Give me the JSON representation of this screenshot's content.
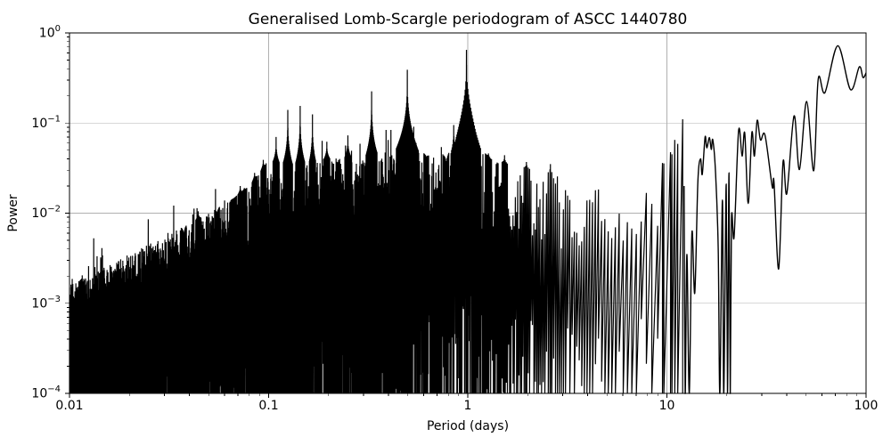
{
  "chart_data": {
    "type": "line",
    "title": "Generalised Lomb-Scargle periodogram of ASCC 1440780",
    "xlabel": "Period (days)",
    "ylabel": "Power",
    "xscale": "log",
    "yscale": "log",
    "xlim": [
      0.01,
      100
    ],
    "ylim": [
      0.0001,
      1
    ],
    "grid": true,
    "legend": false,
    "line_color": "#000000",
    "grid_color": "#b0b0b0",
    "x_tick_labels": [
      "0.01",
      "0.1",
      "1",
      "10",
      "100"
    ],
    "x_tick_values": [
      0.01,
      0.1,
      1,
      10,
      100
    ],
    "y_tick_base": "10",
    "y_tick_exponents": [
      "0",
      "−1",
      "−2",
      "−3",
      "−4"
    ],
    "y_tick_values": [
      1,
      0.1,
      0.01,
      0.001,
      0.0001
    ],
    "peaks": [
      [
        0.0375,
        0.005,
        0.004
      ],
      [
        0.0443,
        0.0105,
        0.004
      ],
      [
        0.055,
        0.009,
        0.004
      ],
      [
        0.0665,
        0.0145,
        0.004
      ],
      [
        0.072,
        0.02,
        0.004
      ],
      [
        0.0755,
        0.019,
        0.004
      ],
      [
        0.085,
        0.028,
        0.004
      ],
      [
        0.094,
        0.039,
        0.004
      ],
      [
        0.109,
        0.07,
        0.005
      ],
      [
        0.1248,
        0.14,
        0.005
      ],
      [
        0.144,
        0.155,
        0.005
      ],
      [
        0.166,
        0.125,
        0.005
      ],
      [
        0.196,
        0.062,
        0.005
      ],
      [
        0.25,
        0.073,
        0.005
      ],
      [
        0.329,
        0.225,
        0.006
      ],
      [
        0.455,
        0.04,
        0.004
      ],
      [
        0.497,
        0.39,
        0.012
      ],
      [
        0.55,
        0.06,
        0.004
      ],
      [
        0.62,
        0.04,
        0.004
      ],
      [
        0.78,
        0.031,
        0.004
      ],
      [
        0.85,
        0.095,
        0.004
      ],
      [
        0.985,
        0.65,
        0.015
      ],
      [
        1.057,
        0.09,
        0.004
      ],
      [
        1.27,
        0.046,
        0.005
      ],
      [
        1.53,
        0.044,
        0.005
      ],
      [
        1.97,
        0.037,
        0.005
      ],
      [
        2.6,
        0.035,
        0.005
      ],
      [
        9.5,
        0.036,
        0.006
      ],
      [
        10.6,
        0.045,
        0.006
      ],
      [
        10.95,
        0.065,
        0.006
      ],
      [
        12.0,
        0.11,
        0.008
      ]
    ],
    "envelope_upper": [
      [
        0.01,
        0.0016
      ],
      [
        0.016,
        0.0028
      ],
      [
        0.025,
        0.0045
      ],
      [
        0.037,
        0.007
      ],
      [
        0.05,
        0.01
      ],
      [
        0.065,
        0.014
      ],
      [
        0.08,
        0.02
      ],
      [
        0.1,
        0.038
      ],
      [
        0.13,
        0.035
      ],
      [
        0.2,
        0.04
      ],
      [
        0.25,
        0.042
      ],
      [
        0.33,
        0.045
      ],
      [
        0.5,
        0.055
      ],
      [
        0.7,
        0.04
      ],
      [
        0.85,
        0.05
      ],
      [
        0.95,
        0.075
      ],
      [
        1.0,
        0.09
      ],
      [
        1.1,
        0.06
      ],
      [
        1.3,
        0.04
      ],
      [
        1.6,
        0.035
      ],
      [
        2.5,
        0.028
      ],
      [
        4,
        0.02
      ],
      [
        6,
        0.018
      ],
      [
        8,
        0.022
      ],
      [
        9,
        0.028
      ],
      [
        10,
        0.04
      ],
      [
        10.5,
        0.05
      ],
      [
        11.5,
        0.06
      ],
      [
        12.0,
        0.07
      ],
      [
        12.2,
        0.04
      ]
    ],
    "envelope_base": [
      [
        0.01,
        0.00085
      ],
      [
        0.02,
        0.0013
      ],
      [
        0.04,
        0.0021
      ],
      [
        0.07,
        0.0032
      ],
      [
        0.1,
        0.0042
      ],
      [
        0.2,
        0.0055
      ],
      [
        0.35,
        0.0065
      ],
      [
        0.6,
        0.0075
      ],
      [
        0.9,
        0.009
      ],
      [
        1.1,
        0.007
      ],
      [
        1.5,
        0.005
      ],
      [
        3,
        0.004
      ],
      [
        8,
        0.0045
      ],
      [
        12.2,
        0.006
      ]
    ],
    "sampling": {
      "frequency_resolution": 0.008,
      "min_period": 0.01,
      "max_period_noisy": 12.2
    },
    "smooth_tail": [
      [
        12.2,
        0.02
      ],
      [
        12.35,
        0.0001
      ],
      [
        12.6,
        0.0035
      ],
      [
        12.95,
        0.0001
      ],
      [
        13.35,
        0.006
      ],
      [
        13.8,
        0.0013
      ],
      [
        14.3,
        0.022
      ],
      [
        14.75,
        0.04
      ],
      [
        15.05,
        0.027
      ],
      [
        15.55,
        0.07
      ],
      [
        15.85,
        0.053
      ],
      [
        16.35,
        0.069
      ],
      [
        16.7,
        0.051
      ],
      [
        17.0,
        0.065
      ],
      [
        17.55,
        0.028
      ],
      [
        18.1,
        0.004
      ],
      [
        18.45,
        0.0001
      ],
      [
        19.0,
        0.014
      ],
      [
        19.3,
        0.0001
      ],
      [
        19.85,
        0.021
      ],
      [
        20.15,
        0.0001
      ],
      [
        20.5,
        0.028
      ],
      [
        20.8,
        0.0001
      ],
      [
        21.1,
        0.0085
      ],
      [
        21.75,
        0.0055
      ],
      [
        22.9,
        0.082
      ],
      [
        23.85,
        0.043
      ],
      [
        24.6,
        0.077
      ],
      [
        25.6,
        0.0128
      ],
      [
        26.7,
        0.078
      ],
      [
        27.5,
        0.043
      ],
      [
        28.4,
        0.107
      ],
      [
        29.5,
        0.065
      ],
      [
        31.1,
        0.073
      ],
      [
        33.8,
        0.0196
      ],
      [
        34.5,
        0.022
      ],
      [
        36.4,
        0.0024
      ],
      [
        38.3,
        0.037
      ],
      [
        40.0,
        0.0165
      ],
      [
        43.5,
        0.12
      ],
      [
        46.3,
        0.0305
      ],
      [
        50.3,
        0.174
      ],
      [
        54.6,
        0.0296
      ],
      [
        57.5,
        0.306
      ],
      [
        62.2,
        0.218
      ],
      [
        72.1,
        0.72
      ],
      [
        83.5,
        0.235
      ],
      [
        92.5,
        0.42
      ],
      [
        96.5,
        0.32
      ],
      [
        100,
        0.36
      ]
    ]
  }
}
